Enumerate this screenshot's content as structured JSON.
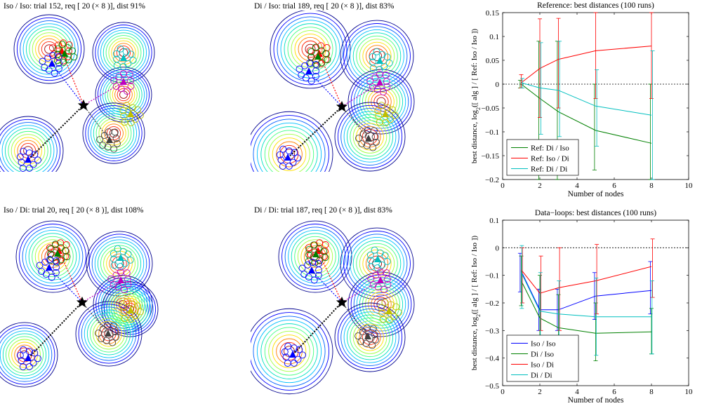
{
  "colors": {
    "blue": "#0000ff",
    "green": "#008000",
    "red": "#ff0000",
    "cyan": "#00bfbf",
    "magenta": "#bf00bf",
    "olive": "#bfbf00",
    "gray": "#404040",
    "black": "#000000"
  },
  "panels": [
    {
      "title": "Iso / Iso: trial 152, req [ 20 (× 8 )], dist 91%"
    },
    {
      "title": "Di / Iso: trial 189, req [ 20 (× 8 )], dist 83%"
    },
    {
      "title": "Iso / Di: trial 20, req [ 20 (× 8 )], dist 108%"
    },
    {
      "title": "Di / Di: trial 187, req [ 20 (× 8 )], dist 83%"
    }
  ],
  "chart_data": [
    {
      "type": "line",
      "title": "Reference: best distances (100 runs)",
      "xlabel": "Number of nodes",
      "ylabel": "best distance, log2([ alg ] / [ Ref: Iso / Iso ])",
      "ylabel_parts": {
        "a": "best distance, log",
        "sub": "2",
        "b": "([ alg ] / [ Ref: Iso / Iso ])"
      },
      "xlim": [
        0,
        10
      ],
      "ylim": [
        -0.2,
        0.15
      ],
      "xticks": [
        0,
        2,
        4,
        6,
        8,
        10
      ],
      "yticks": [
        -0.2,
        -0.15,
        -0.1,
        -0.05,
        0,
        0.05,
        0.1,
        0.15
      ],
      "ytick_labels": [
        "−0.2",
        "−0.15",
        "−0.1",
        "−0.05",
        "0",
        "0.05",
        "0.1",
        "0.15"
      ],
      "xtick_labels": [
        "0",
        "2",
        "4",
        "6",
        "8",
        "10"
      ],
      "x": [
        1,
        2,
        3,
        5,
        8
      ],
      "reference_line": 0,
      "legend_position": "bottom-left",
      "series": [
        {
          "name": "Ref: Di / Iso",
          "color": "#008000",
          "values": [
            0.0,
            -0.03,
            -0.058,
            -0.097,
            -0.124
          ],
          "err_low": [
            -0.008,
            -0.2,
            -0.2,
            -0.18,
            -0.2
          ],
          "err_high": [
            0.008,
            0.09,
            0.09,
            0.0,
            0.0
          ]
        },
        {
          "name": "Ref: Iso / Di",
          "color": "#ff0000",
          "values": [
            0.003,
            0.033,
            0.052,
            0.07,
            0.08
          ],
          "err_low": [
            -0.008,
            -0.07,
            -0.05,
            -0.03,
            -0.03
          ],
          "err_high": [
            0.02,
            0.137,
            0.138,
            0.156,
            0.166
          ]
        },
        {
          "name": "Ref: Di / Di",
          "color": "#00bfbf",
          "values": [
            0.003,
            -0.008,
            -0.013,
            -0.046,
            -0.065
          ],
          "err_low": [
            -0.008,
            -0.105,
            -0.11,
            -0.13,
            -0.2
          ],
          "err_high": [
            0.012,
            0.087,
            0.09,
            0.03,
            0.07
          ]
        }
      ]
    },
    {
      "type": "line",
      "title": "Data−loops: best distances (100 runs)",
      "xlabel": "Number of nodes",
      "ylabel": "best distance, log2([ alg ] / [ Ref: Iso / Iso ])",
      "ylabel_parts": {
        "a": "best distance, log",
        "sub": "2",
        "b": "([ alg ] / [ Ref: Iso / Iso ])"
      },
      "xlim": [
        0,
        10
      ],
      "ylim": [
        -0.5,
        0.1
      ],
      "xticks": [
        0,
        2,
        4,
        6,
        8,
        10
      ],
      "yticks": [
        -0.5,
        -0.4,
        -0.3,
        -0.2,
        -0.1,
        0,
        0.1
      ],
      "ytick_labels": [
        "−0.5",
        "−0.4",
        "−0.3",
        "−0.2",
        "−0.1",
        "0",
        "0.1"
      ],
      "xtick_labels": [
        "0",
        "2",
        "4",
        "6",
        "8",
        "10"
      ],
      "x": [
        1,
        2,
        3,
        5,
        8
      ],
      "reference_line": 0,
      "legend_position": "bottom-left",
      "series": [
        {
          "name": "Iso / Iso",
          "color": "#0000ff",
          "values": [
            -0.085,
            -0.225,
            -0.225,
            -0.175,
            -0.155
          ],
          "err_low": [
            -0.16,
            -0.3,
            -0.3,
            -0.26,
            -0.24
          ],
          "err_high": [
            -0.02,
            -0.15,
            -0.15,
            -0.09,
            -0.05
          ]
        },
        {
          "name": "Di / Iso",
          "color": "#008000",
          "values": [
            -0.12,
            -0.255,
            -0.29,
            -0.31,
            -0.305
          ],
          "err_low": [
            -0.21,
            -0.4,
            -0.4,
            -0.41,
            -0.385
          ],
          "err_high": [
            -0.03,
            -0.1,
            -0.17,
            -0.2,
            -0.22
          ]
        },
        {
          "name": "Iso / Di",
          "color": "#ff0000",
          "values": [
            -0.08,
            -0.165,
            -0.145,
            -0.12,
            -0.068
          ],
          "err_low": [
            -0.2,
            -0.3,
            -0.3,
            -0.24,
            -0.18
          ],
          "err_high": [
            0.0,
            -0.03,
            0.0,
            0.012,
            0.032
          ]
        },
        {
          "name": "Di / Di",
          "color": "#00bfbf",
          "values": [
            -0.09,
            -0.23,
            -0.24,
            -0.25,
            -0.25
          ],
          "err_low": [
            -0.22,
            -0.37,
            -0.37,
            -0.39,
            -0.385
          ],
          "err_high": [
            0.008,
            -0.09,
            -0.12,
            -0.11,
            -0.12
          ]
        }
      ]
    }
  ]
}
